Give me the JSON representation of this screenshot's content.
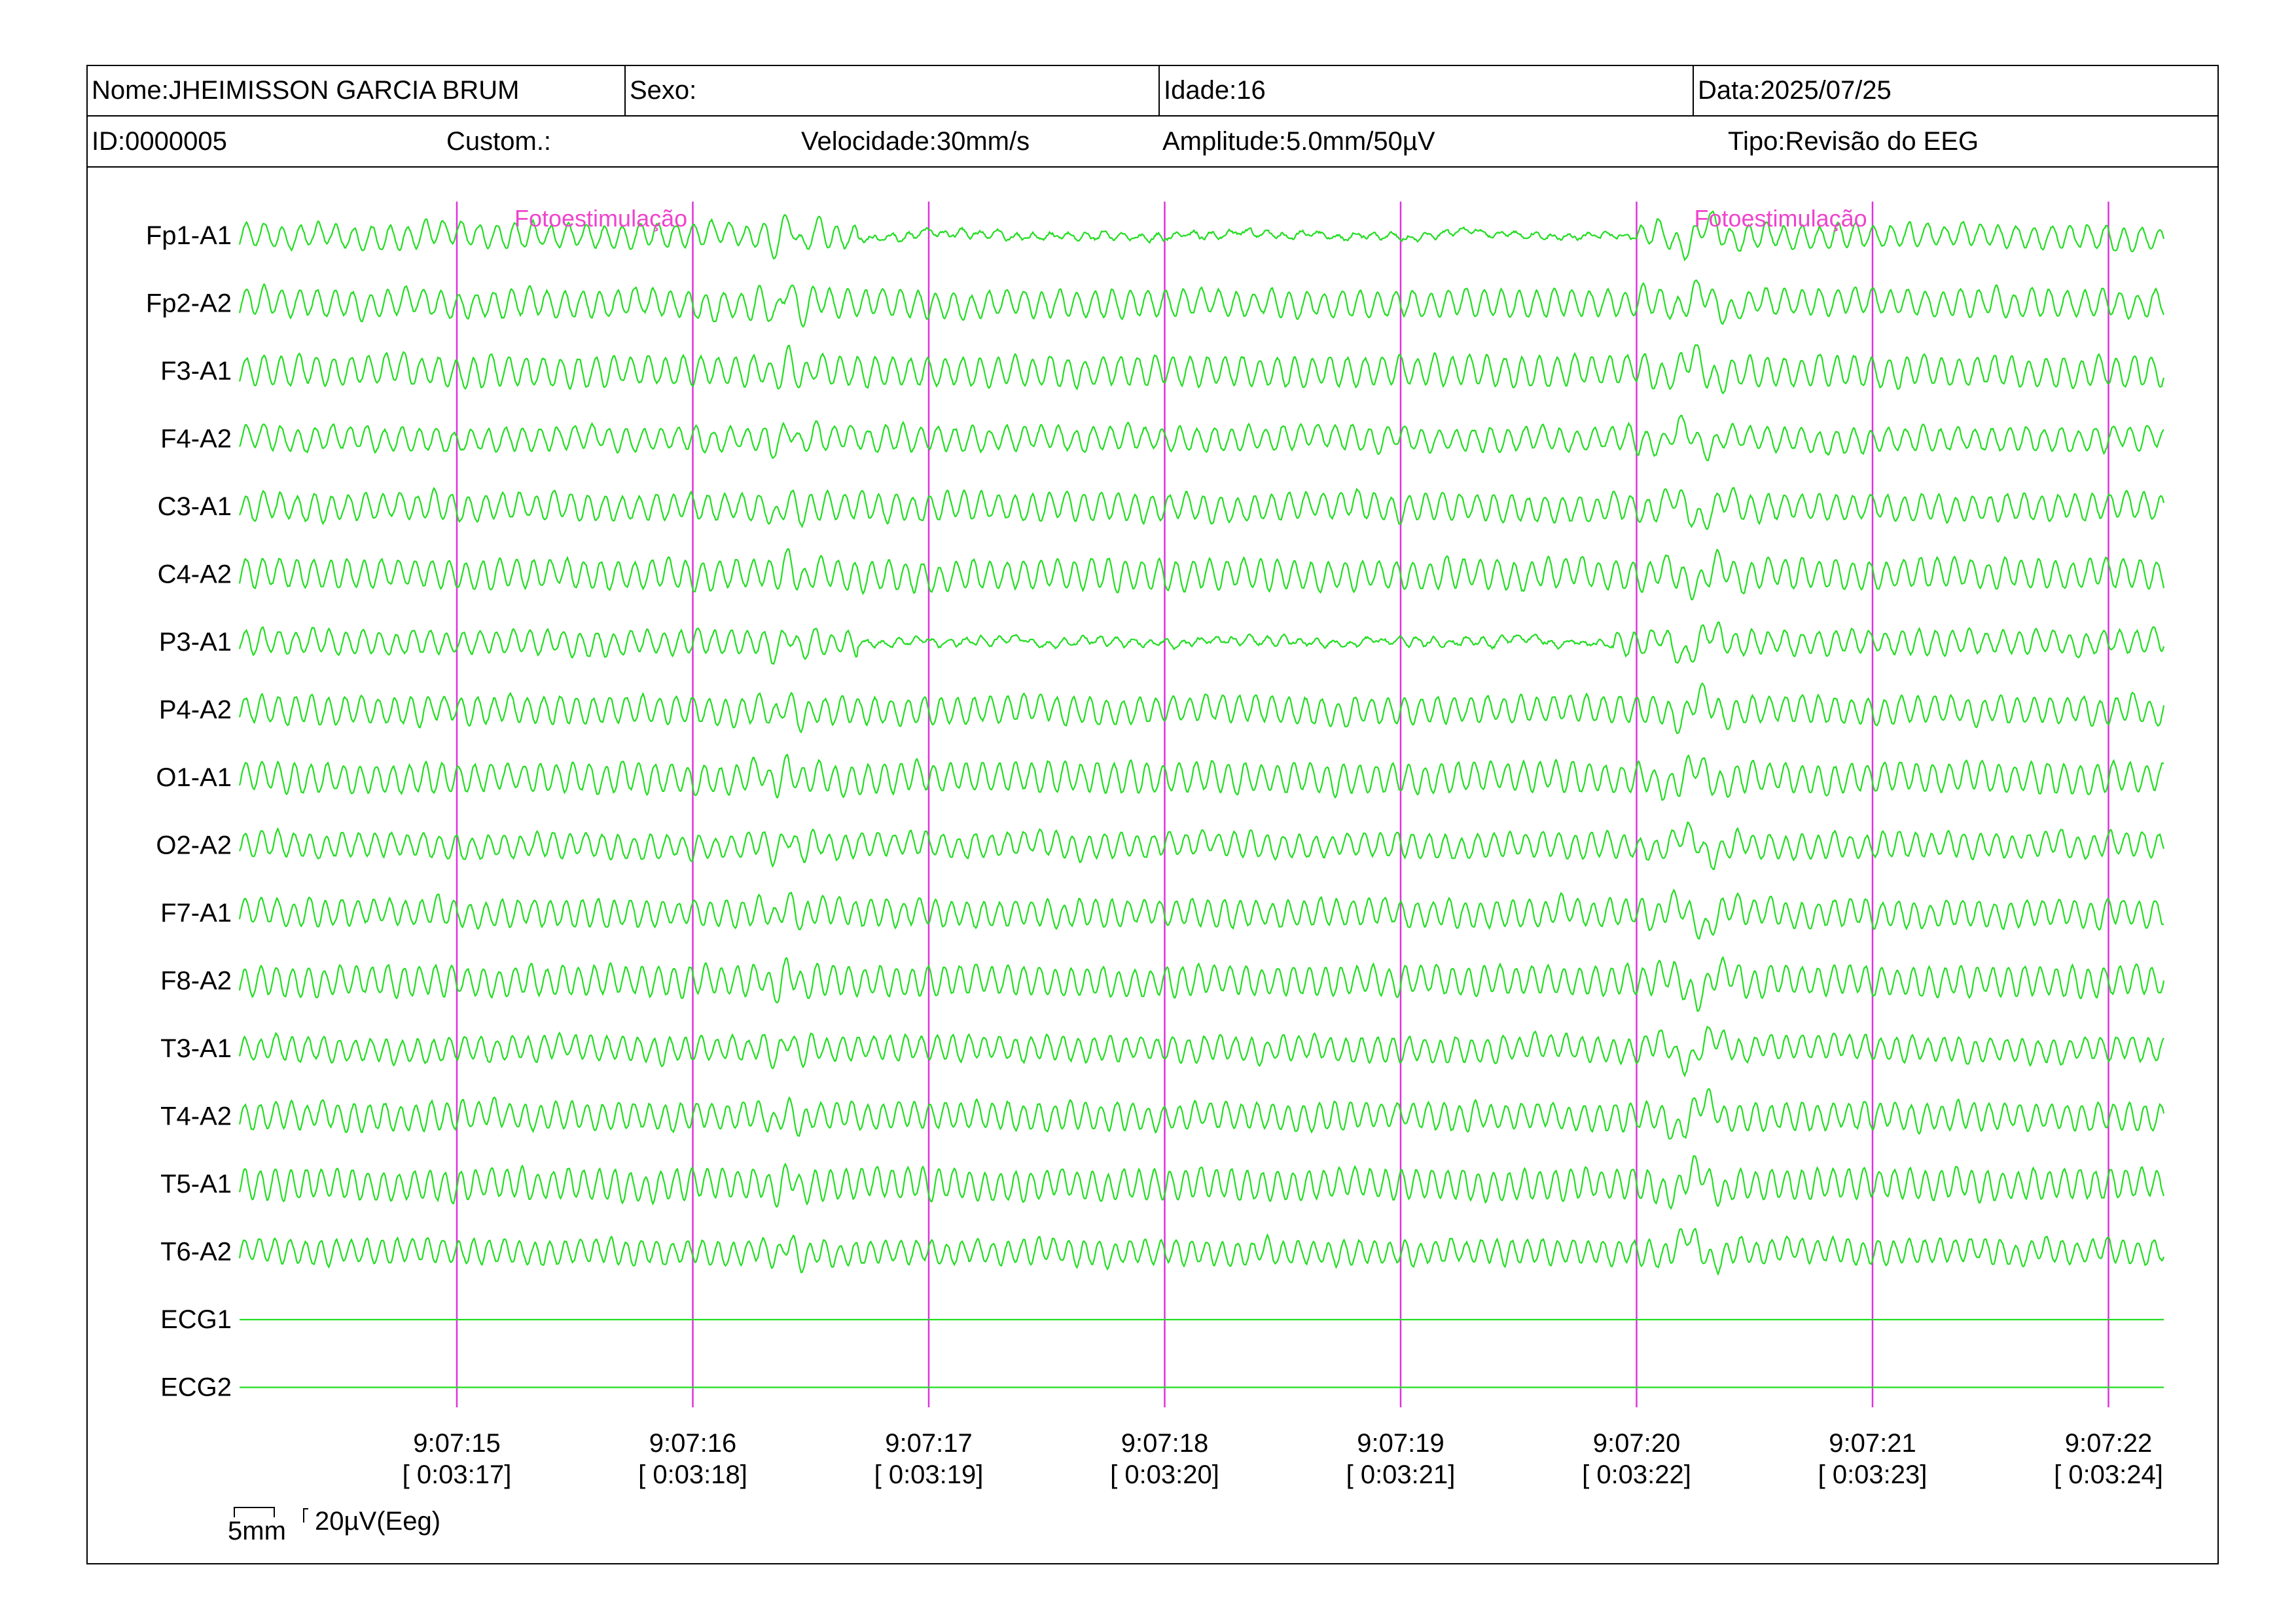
{
  "header": {
    "nome": "Nome:JHEIMISSON GARCIA BRUM",
    "sexo": "Sexo:",
    "idade": "Idade:16",
    "data": "Data:2025/07/25",
    "id": "ID:0000005",
    "custom": "Custom.:",
    "velocidade": "Velocidade:30mm/s",
    "amplitude": "Amplitude:5.0mm/50µV",
    "tipo": "Tipo:Revisão do EEG"
  },
  "colors": {
    "trace": "#22dd22",
    "marker": "#dd33dd",
    "event_text": "#ee44cc",
    "frame": "#000000"
  },
  "chart_data": {
    "type": "line",
    "channels": [
      "Fp1-A1",
      "Fp2-A2",
      "F3-A1",
      "F4-A2",
      "C3-A1",
      "C4-A2",
      "P3-A1",
      "P4-A2",
      "O1-A1",
      "O2-A2",
      "F7-A1",
      "F8-A2",
      "T3-A1",
      "T4-A2",
      "T5-A1",
      "T6-A2",
      "ECG1",
      "ECG2"
    ],
    "flat_channels": [
      "ECG1",
      "ECG2"
    ],
    "time_markers": [
      {
        "clock": "9:07:15",
        "elapsed": "[ 0:03:17]"
      },
      {
        "clock": "9:07:16",
        "elapsed": "[ 0:03:18]"
      },
      {
        "clock": "9:07:17",
        "elapsed": "[ 0:03:19]"
      },
      {
        "clock": "9:07:18",
        "elapsed": "[ 0:03:20]"
      },
      {
        "clock": "9:07:19",
        "elapsed": "[ 0:03:21]"
      },
      {
        "clock": "9:07:20",
        "elapsed": "[ 0:03:22]"
      },
      {
        "clock": "9:07:21",
        "elapsed": "[ 0:03:23]"
      },
      {
        "clock": "9:07:22",
        "elapsed": "[ 0:03:24]"
      }
    ],
    "events": [
      {
        "label": "Fotoestimulação",
        "time": "9:07:15"
      },
      {
        "label": "Fotoestimulação",
        "time": "9:07:20"
      }
    ],
    "sweep_speed": "30mm/s",
    "amplitude": "5.0mm/50µV",
    "scale_bar": {
      "x_label": "5mm",
      "y_label": "20µV(Eeg)"
    }
  }
}
